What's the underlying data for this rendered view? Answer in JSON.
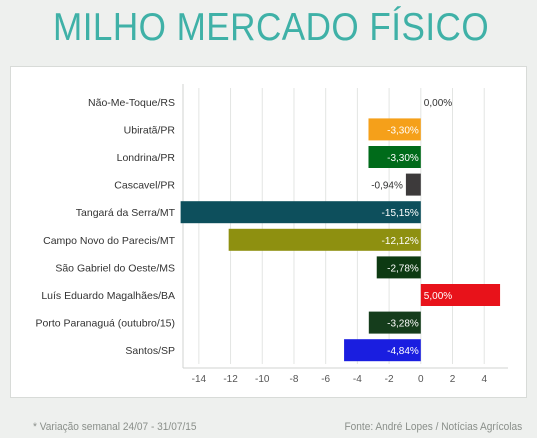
{
  "header": {
    "title": "MILHO MERCADO FÍSICO"
  },
  "footer": {
    "note": "* Variação semanal 24/07 - 31/07/15",
    "source": "Fonte: André Lopes / Notícias Agrícolas"
  },
  "chart_data": {
    "type": "bar",
    "orientation": "horizontal",
    "categories": [
      "Não-Me-Toque/RS",
      "Ubiratã/PR",
      "Londrina/PR",
      "Cascavel/PR",
      "Tangará da Serra/MT",
      "Campo Novo do Parecis/MT",
      "São Gabriel do Oeste/MS",
      "Luís Eduardo Magalhães/BA",
      "Porto Paranaguá (outubro/15)",
      "Santos/SP"
    ],
    "values": [
      0,
      -3.3,
      -3.3,
      -0.94,
      -15.15,
      -12.12,
      -2.78,
      5.0,
      -3.28,
      -4.84
    ],
    "data_labels": [
      "0,00%",
      "-3,30%",
      "-3,30%",
      "-0,94%",
      "-15,15%",
      "-12,12%",
      "-2,78%",
      "5,00%",
      "-3,28%",
      "-4,84%"
    ],
    "colors": [
      "#cccccc",
      "#f5a01a",
      "#006b1a",
      "#3d3a3b",
      "#0d4f5c",
      "#8e9010",
      "#0d3a12",
      "#e8121a",
      "#153d1c",
      "#1a1ee0"
    ],
    "xlim": [
      -15,
      5.5
    ],
    "xticks": [
      -14,
      -12,
      -10,
      -8,
      -6,
      -4,
      -2,
      0,
      2,
      4
    ],
    "xtick_labels": [
      "-14",
      "-12",
      "-10",
      "-8",
      "-6",
      "-4",
      "-2",
      "0",
      "2",
      "4"
    ],
    "grid": true,
    "title": "MILHO MERCADO FÍSICO",
    "xlabel": "",
    "ylabel": ""
  }
}
